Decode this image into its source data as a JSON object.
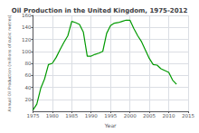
{
  "chart_data": {
    "type": "line",
    "title": "Oil Production in the United Kingdom, 1975-2012",
    "xlabel": "Year",
    "ylabel": "Annual Oil Production (millions of cubic metres)",
    "x": [
      1975,
      1976,
      1977,
      1978,
      1979,
      1980,
      1981,
      1982,
      1983,
      1984,
      1985,
      1986,
      1987,
      1988,
      1989,
      1990,
      1991,
      1992,
      1993,
      1994,
      1995,
      1996,
      1997,
      1998,
      1999,
      2000,
      2001,
      2002,
      2003,
      2004,
      2005,
      2006,
      2007,
      2008,
      2009,
      2010,
      2011,
      2012
    ],
    "values": [
      2,
      12,
      38,
      54,
      78,
      80,
      90,
      103,
      115,
      126,
      150,
      148,
      145,
      132,
      92,
      92,
      95,
      97,
      100,
      130,
      143,
      147,
      148,
      150,
      152,
      152,
      138,
      126,
      116,
      102,
      88,
      78,
      77,
      71,
      68,
      65,
      52,
      45
    ],
    "color": "#009900",
    "xlim": [
      1975,
      2015
    ],
    "ylim": [
      0,
      160
    ],
    "xticks": [
      1975,
      1980,
      1985,
      1990,
      1995,
      2000,
      2005,
      2010,
      2015
    ],
    "yticks": [
      20,
      40,
      60,
      80,
      100,
      120,
      140,
      160
    ],
    "grid": true
  }
}
